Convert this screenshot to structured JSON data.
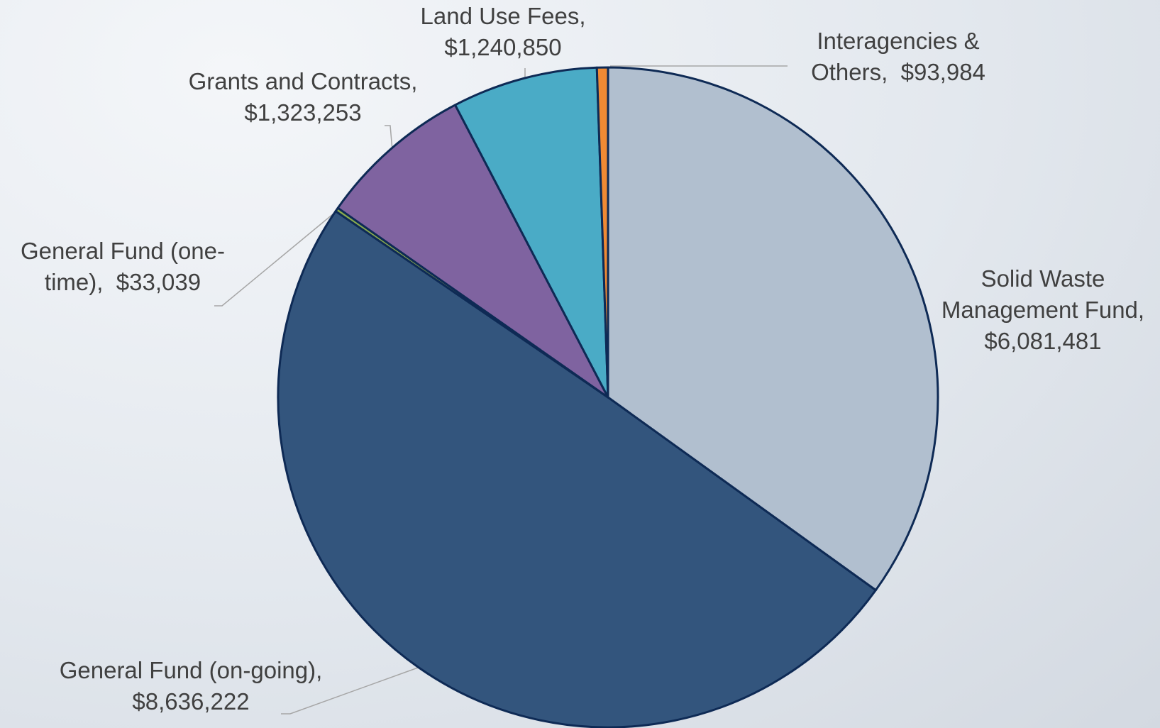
{
  "chart_data": {
    "type": "pie",
    "categories": [
      "Solid Waste Management Fund,",
      "General Fund (on-going),",
      "General Fund (one-time),",
      "Grants and Contracts,",
      "Land Use Fees,",
      "Interagencies & Others,"
    ],
    "values": [
      6081481,
      8636222,
      33039,
      1323253,
      1240850,
      93984
    ],
    "value_labels": [
      "$6,081,481",
      "$8,636,222",
      "$33,039",
      "$1,323,253",
      "$1,240,850",
      "$93,984"
    ],
    "colors": [
      "#b1bfcf",
      "#33557d",
      "#8aab4e",
      "#7f63a0",
      "#4aabc6",
      "#f08a34"
    ]
  }
}
